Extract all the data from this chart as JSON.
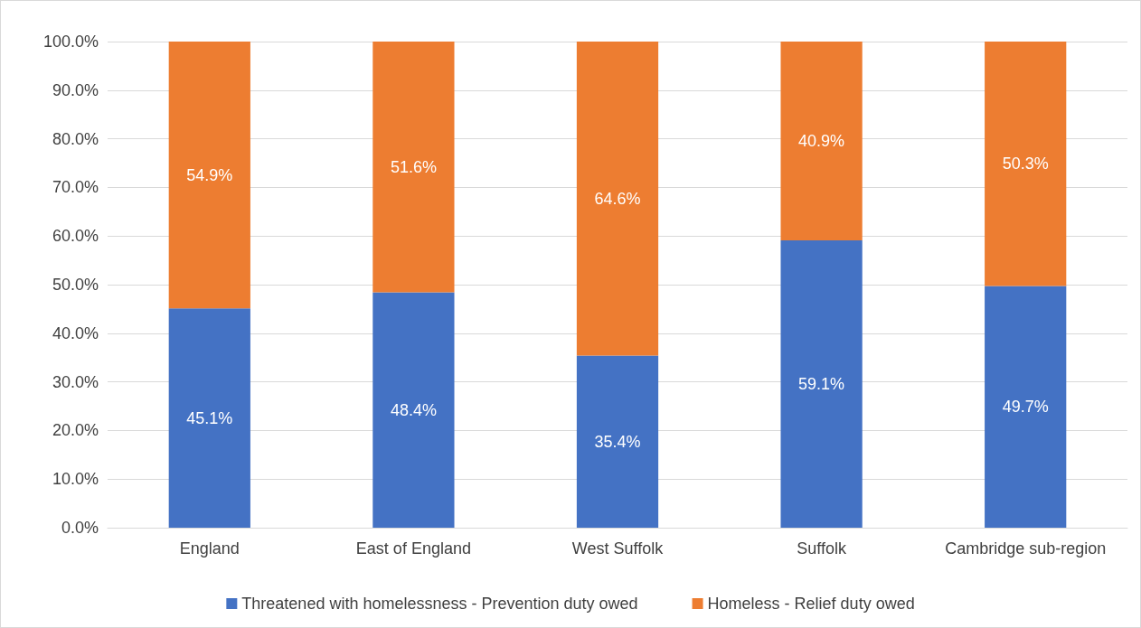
{
  "chart_data": {
    "type": "bar",
    "stacked": true,
    "categories": [
      "England",
      "East of England",
      "West Suffolk",
      "Suffolk",
      "Cambridge sub-region"
    ],
    "series": [
      {
        "name": "Threatened with homelessness - Prevention duty owed",
        "color": "#4472c4",
        "values": [
          45.1,
          48.4,
          35.4,
          59.1,
          49.7
        ],
        "value_labels": [
          "45.1%",
          "48.4%",
          "35.4%",
          "59.1%",
          "49.7%"
        ]
      },
      {
        "name": "Homeless - Relief duty owed",
        "color": "#ed7d31",
        "values": [
          54.9,
          51.6,
          64.6,
          40.9,
          50.3
        ],
        "value_labels": [
          "54.9%",
          "51.6%",
          "64.6%",
          "40.9%",
          "50.3%"
        ]
      }
    ],
    "ylim": [
      0,
      100
    ],
    "yticks": [
      {
        "value": 0,
        "label": "0.0%"
      },
      {
        "value": 10,
        "label": "10.0%"
      },
      {
        "value": 20,
        "label": "20.0%"
      },
      {
        "value": 30,
        "label": "30.0%"
      },
      {
        "value": 40,
        "label": "40.0%"
      },
      {
        "value": 50,
        "label": "50.0%"
      },
      {
        "value": 60,
        "label": "60.0%"
      },
      {
        "value": 70,
        "label": "70.0%"
      },
      {
        "value": 80,
        "label": "80.0%"
      },
      {
        "value": 90,
        "label": "90.0%"
      },
      {
        "value": 100,
        "label": "100.0%"
      }
    ],
    "grid": "y",
    "legend": "bottom"
  }
}
